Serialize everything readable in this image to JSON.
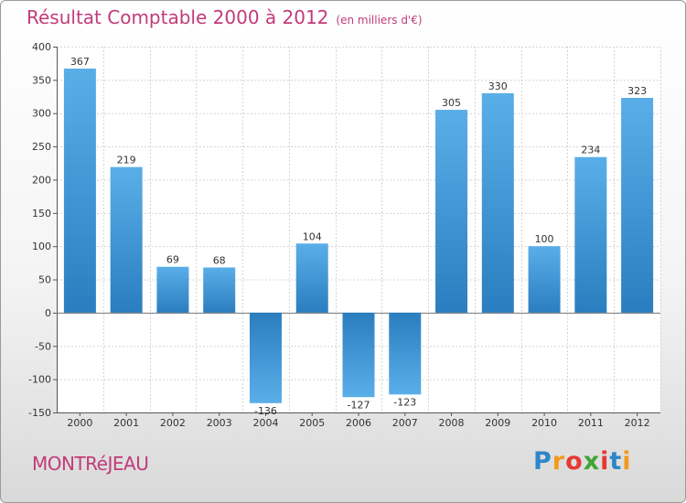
{
  "header": {
    "title": "Résultat Comptable 2000 à 2012",
    "subtitle": "(en milliers d'€)"
  },
  "footer": {
    "commune": "MONTRéJEAU",
    "brand": {
      "letters": [
        "P",
        "r",
        "o",
        "x",
        "i",
        "t",
        "i"
      ],
      "colors": [
        "#2e86c8",
        "#f29a1d",
        "#e53935",
        "#3fa535",
        "#e53935",
        "#2e86c8",
        "#f29a1d"
      ]
    }
  },
  "chart_data": {
    "type": "bar",
    "title": "Résultat Comptable 2000 à 2012",
    "subtitle": "(en milliers d'€)",
    "xlabel": "",
    "ylabel": "",
    "categories": [
      "2000",
      "2001",
      "2002",
      "2003",
      "2004",
      "2005",
      "2006",
      "2007",
      "2008",
      "2009",
      "2010",
      "2011",
      "2012"
    ],
    "values": [
      367,
      219,
      69,
      68,
      -136,
      104,
      -127,
      -123,
      305,
      330,
      100,
      234,
      323
    ],
    "value_labels": [
      "367",
      "219",
      "69",
      "68",
      "-136",
      "104",
      "-127",
      "-123",
      "305",
      "330",
      "100",
      "234",
      "323"
    ],
    "ylim": [
      -150,
      400
    ],
    "yticks": [
      -150,
      -100,
      -50,
      0,
      50,
      100,
      150,
      200,
      250,
      300,
      350,
      400
    ],
    "ytick_labels": [
      "-150",
      "-100",
      "-50",
      "0",
      "50",
      "100",
      "150",
      "200",
      "250",
      "300",
      "350",
      "400"
    ],
    "grid": true,
    "bar_color_light": "#5aaee8",
    "bar_color_dark": "#2a7ebf"
  }
}
